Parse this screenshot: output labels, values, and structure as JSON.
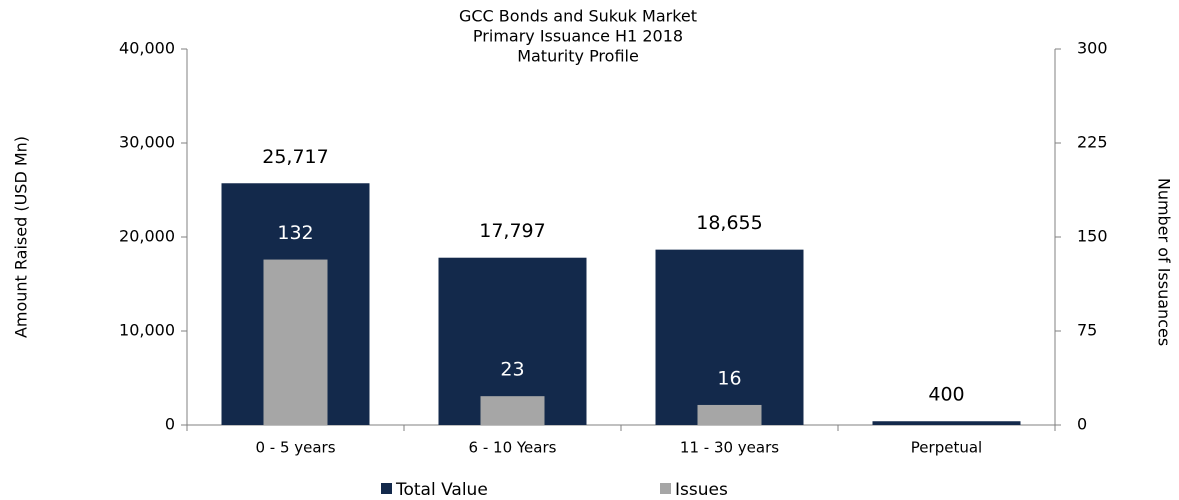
{
  "chart_data": {
    "type": "bar",
    "title": [
      "GCC  Bonds and Sukuk Market",
      "Primary Issuance H1 2018",
      "Maturity Profile"
    ],
    "categories": [
      "0 - 5 years",
      "6 - 10 Years",
      "11 - 30 years",
      "Perpetual"
    ],
    "series": [
      {
        "name": "Total Value",
        "color": "#13294b",
        "values": [
          25717,
          17797,
          18655,
          400
        ],
        "value_labels": [
          "25,717",
          "17,797",
          "18,655",
          "400"
        ]
      },
      {
        "name": "Issues",
        "color": "#a6a6a6",
        "axis": "y2",
        "values": [
          132,
          23,
          16,
          null
        ]
      }
    ],
    "ylabel": "Amount Raised (USD Mn)",
    "y2label": "Number of Issuances",
    "ylim": [
      0,
      40000
    ],
    "yticks": [
      0,
      {
        "value": 10000,
        "label": "10,000"
      },
      {
        "value": 20000,
        "label": "20,000"
      },
      {
        "value": 30000,
        "label": "30,000"
      },
      {
        "value": 40000,
        "label": "40,000"
      }
    ],
    "y2lim": [
      0,
      300
    ],
    "y2ticks": [
      0,
      75,
      150,
      225,
      300
    ],
    "grid": false,
    "legend": "bottom"
  }
}
